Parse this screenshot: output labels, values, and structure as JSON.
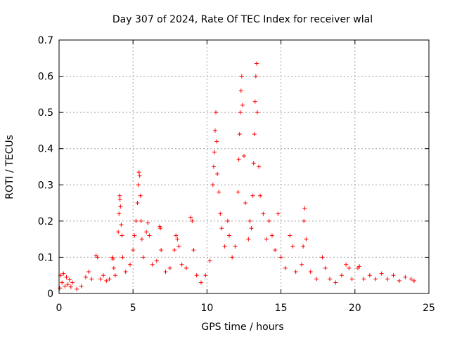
{
  "chart_data": {
    "type": "scatter",
    "title": "Day 307 of 2024, Rate Of TEC Index for receiver wlal",
    "xlabel": "GPS time / hours",
    "ylabel": "ROTI / TECUs",
    "xlim": [
      0,
      25
    ],
    "ylim": [
      0,
      0.7
    ],
    "xticks": [
      0,
      5,
      10,
      15,
      20,
      25
    ],
    "yticks": [
      0,
      0.1,
      0.2,
      0.3,
      0.4,
      0.5,
      0.6,
      0.7
    ],
    "xtick_labels": [
      "0",
      "5",
      "10",
      "15",
      "20",
      "25"
    ],
    "ytick_labels": [
      "0",
      "0.1",
      "0.2",
      "0.3",
      "0.4",
      "0.5",
      "0.6",
      "0.7"
    ],
    "grid": true,
    "marker": "+",
    "marker_color": "#ff0000",
    "series": [
      {
        "name": "ROTI",
        "points": [
          [
            0.05,
            0.015
          ],
          [
            0.1,
            0.05
          ],
          [
            0.2,
            0.03
          ],
          [
            0.3,
            0.055
          ],
          [
            0.4,
            0.02
          ],
          [
            0.5,
            0.045
          ],
          [
            0.6,
            0.025
          ],
          [
            0.7,
            0.038
          ],
          [
            0.8,
            0.018
          ],
          [
            0.9,
            0.03
          ],
          [
            1.2,
            0.012
          ],
          [
            1.5,
            0.02
          ],
          [
            1.8,
            0.045
          ],
          [
            2.0,
            0.06
          ],
          [
            2.2,
            0.04
          ],
          [
            2.5,
            0.105
          ],
          [
            2.6,
            0.1
          ],
          [
            2.8,
            0.04
          ],
          [
            3.0,
            0.05
          ],
          [
            3.2,
            0.035
          ],
          [
            3.4,
            0.04
          ],
          [
            3.6,
            0.1
          ],
          [
            3.65,
            0.095
          ],
          [
            3.7,
            0.07
          ],
          [
            3.8,
            0.05
          ],
          [
            4.0,
            0.17
          ],
          [
            4.05,
            0.22
          ],
          [
            4.1,
            0.27
          ],
          [
            4.12,
            0.26
          ],
          [
            4.15,
            0.24
          ],
          [
            4.2,
            0.19
          ],
          [
            4.25,
            0.16
          ],
          [
            4.3,
            0.1
          ],
          [
            4.5,
            0.06
          ],
          [
            4.8,
            0.08
          ],
          [
            5.0,
            0.12
          ],
          [
            5.1,
            0.16
          ],
          [
            5.2,
            0.2
          ],
          [
            5.3,
            0.25
          ],
          [
            5.35,
            0.3
          ],
          [
            5.4,
            0.335
          ],
          [
            5.45,
            0.325
          ],
          [
            5.5,
            0.27
          ],
          [
            5.55,
            0.2
          ],
          [
            5.6,
            0.15
          ],
          [
            5.7,
            0.1
          ],
          [
            5.9,
            0.17
          ],
          [
            6.0,
            0.195
          ],
          [
            6.1,
            0.16
          ],
          [
            6.3,
            0.08
          ],
          [
            6.6,
            0.09
          ],
          [
            6.8,
            0.185
          ],
          [
            6.85,
            0.18
          ],
          [
            6.9,
            0.12
          ],
          [
            7.2,
            0.06
          ],
          [
            7.5,
            0.07
          ],
          [
            7.8,
            0.12
          ],
          [
            7.9,
            0.16
          ],
          [
            8.0,
            0.15
          ],
          [
            8.1,
            0.13
          ],
          [
            8.3,
            0.08
          ],
          [
            8.6,
            0.07
          ],
          [
            8.9,
            0.21
          ],
          [
            9.0,
            0.2
          ],
          [
            9.1,
            0.12
          ],
          [
            9.3,
            0.05
          ],
          [
            9.6,
            0.03
          ],
          [
            9.9,
            0.05
          ],
          [
            10.2,
            0.09
          ],
          [
            10.4,
            0.3
          ],
          [
            10.45,
            0.35
          ],
          [
            10.5,
            0.39
          ],
          [
            10.55,
            0.45
          ],
          [
            10.6,
            0.5
          ],
          [
            10.65,
            0.42
          ],
          [
            10.7,
            0.33
          ],
          [
            10.8,
            0.28
          ],
          [
            10.9,
            0.22
          ],
          [
            11.0,
            0.18
          ],
          [
            11.2,
            0.13
          ],
          [
            11.4,
            0.2
          ],
          [
            11.5,
            0.16
          ],
          [
            11.7,
            0.1
          ],
          [
            11.9,
            0.13
          ],
          [
            12.1,
            0.28
          ],
          [
            12.15,
            0.37
          ],
          [
            12.2,
            0.44
          ],
          [
            12.25,
            0.5
          ],
          [
            12.3,
            0.56
          ],
          [
            12.35,
            0.6
          ],
          [
            12.4,
            0.52
          ],
          [
            12.5,
            0.38
          ],
          [
            12.6,
            0.25
          ],
          [
            12.8,
            0.15
          ],
          [
            12.9,
            0.2
          ],
          [
            13.0,
            0.18
          ],
          [
            13.1,
            0.27
          ],
          [
            13.15,
            0.36
          ],
          [
            13.2,
            0.44
          ],
          [
            13.25,
            0.53
          ],
          [
            13.3,
            0.6
          ],
          [
            13.35,
            0.635
          ],
          [
            13.4,
            0.5
          ],
          [
            13.5,
            0.35
          ],
          [
            13.6,
            0.27
          ],
          [
            13.8,
            0.22
          ],
          [
            14.0,
            0.15
          ],
          [
            14.2,
            0.2
          ],
          [
            14.4,
            0.16
          ],
          [
            14.6,
            0.12
          ],
          [
            14.8,
            0.22
          ],
          [
            15.0,
            0.1
          ],
          [
            15.3,
            0.07
          ],
          [
            15.6,
            0.16
          ],
          [
            15.8,
            0.13
          ],
          [
            16.0,
            0.06
          ],
          [
            16.4,
            0.08
          ],
          [
            16.5,
            0.13
          ],
          [
            16.55,
            0.2
          ],
          [
            16.6,
            0.235
          ],
          [
            16.7,
            0.15
          ],
          [
            17.0,
            0.06
          ],
          [
            17.4,
            0.04
          ],
          [
            17.8,
            0.1
          ],
          [
            18.0,
            0.07
          ],
          [
            18.3,
            0.04
          ],
          [
            18.7,
            0.03
          ],
          [
            19.1,
            0.05
          ],
          [
            19.4,
            0.08
          ],
          [
            19.6,
            0.07
          ],
          [
            19.8,
            0.04
          ],
          [
            20.2,
            0.07
          ],
          [
            20.3,
            0.075
          ],
          [
            20.6,
            0.04
          ],
          [
            21.0,
            0.05
          ],
          [
            21.4,
            0.04
          ],
          [
            21.8,
            0.055
          ],
          [
            22.2,
            0.04
          ],
          [
            22.6,
            0.05
          ],
          [
            23.0,
            0.035
          ],
          [
            23.4,
            0.045
          ],
          [
            23.8,
            0.04
          ],
          [
            24.0,
            0.035
          ]
        ]
      }
    ]
  }
}
